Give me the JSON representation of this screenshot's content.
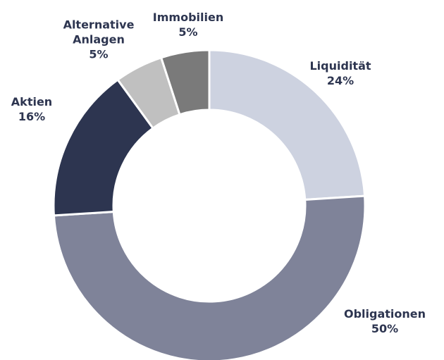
{
  "chart_data": {
    "type": "donut",
    "categories": [
      "Liquidität",
      "Obligationen",
      "Aktien",
      "Alternative Anlagen",
      "Immobilien"
    ],
    "values": [
      24,
      50,
      16,
      5,
      5
    ],
    "value_labels": [
      "24%",
      "50%",
      "16%",
      "5%",
      "5%"
    ],
    "colors": [
      "#cdd2e0",
      "#7f8399",
      "#2d3550",
      "#c0c0c0",
      "#7a7a7a"
    ]
  }
}
